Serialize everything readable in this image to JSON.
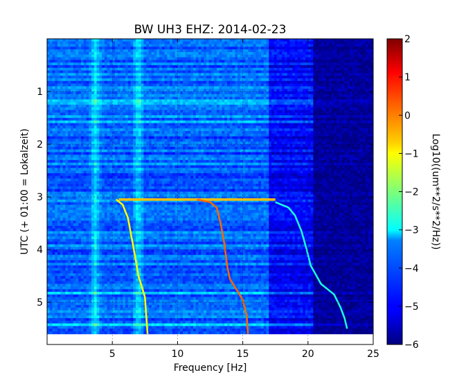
{
  "chart_data": {
    "type": "heatmap",
    "title": "BW UH3 EHZ: 2014-02-23",
    "xlabel": "Frequency [Hz]",
    "ylabel": "UTC (+ 01:00 = Lokalzeit)",
    "xlim": [
      0,
      25
    ],
    "ylim": [
      5.8,
      0
    ],
    "data_extent_y": [
      0,
      5.6
    ],
    "x_ticks": [
      5,
      10,
      15,
      20,
      25
    ],
    "y_ticks": [
      1,
      2,
      3,
      4,
      5
    ],
    "colorbar": {
      "label": "Log10((um**2/s**2/Hz))",
      "colormap": "jet",
      "range": [
        -6,
        2
      ],
      "ticks": [
        2,
        1,
        0,
        -1,
        -2,
        -3,
        -4,
        -5,
        -6
      ]
    },
    "background_levels": {
      "low_freq_band": {
        "x": [
          0,
          17
        ],
        "value": -4.2
      },
      "mid_freq_band": {
        "x": [
          17,
          20.5
        ],
        "value": -5.0
      },
      "high_freq_band": {
        "x": [
          20.5,
          25
        ],
        "value": -5.8
      }
    },
    "persistent_lines_hz": [
      3.7,
      7.0
    ],
    "horizontal_events": [
      {
        "y": 3.05,
        "x_start": 5.5,
        "x_end": 17.5,
        "value": -0.5
      }
    ],
    "curves": [
      {
        "name": "",
        "points": [
          [
            5.3,
            3.05
          ],
          [
            5.8,
            3.15
          ],
          [
            6.2,
            3.4
          ],
          [
            6.5,
            3.8
          ],
          [
            6.8,
            4.2
          ],
          [
            7.0,
            4.5
          ],
          [
            7.2,
            4.65
          ],
          [
            7.5,
            4.9
          ],
          [
            7.6,
            5.25
          ],
          [
            7.7,
            5.6
          ]
        ],
        "value": -1.0
      },
      {
        "name": "",
        "points": [
          [
            11.5,
            3.05
          ],
          [
            12.5,
            3.1
          ],
          [
            13.0,
            3.2
          ],
          [
            13.3,
            3.5
          ],
          [
            13.6,
            3.9
          ],
          [
            13.8,
            4.3
          ],
          [
            14.0,
            4.55
          ],
          [
            14.5,
            4.75
          ],
          [
            15.0,
            4.95
          ],
          [
            15.3,
            5.25
          ],
          [
            15.4,
            5.6
          ]
        ],
        "value": 0.2
      },
      {
        "name": "",
        "points": [
          [
            17.5,
            3.1
          ],
          [
            18.5,
            3.2
          ],
          [
            19.0,
            3.35
          ],
          [
            19.5,
            3.65
          ],
          [
            19.9,
            4.0
          ],
          [
            20.2,
            4.3
          ],
          [
            21.0,
            4.65
          ],
          [
            22.0,
            4.85
          ],
          [
            22.5,
            5.1
          ],
          [
            22.8,
            5.3
          ],
          [
            23.0,
            5.5
          ]
        ],
        "value": -2.8
      }
    ]
  }
}
